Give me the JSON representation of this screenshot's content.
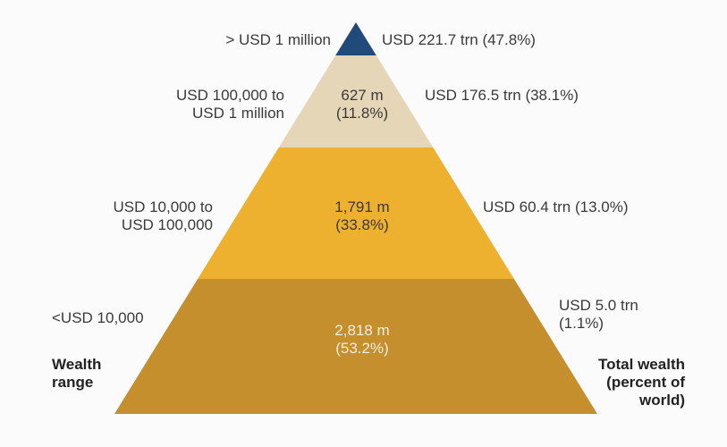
{
  "chart_data": {
    "type": "pyramid",
    "xlabel_left": "Wealth\nrange",
    "xlabel_right": "Total wealth\n(percent of\nworld)",
    "tiers": [
      {
        "range": "> USD 1 million",
        "adults": "",
        "wealth": "USD 221.7 trn (47.8%)",
        "wealth_trn": 221.7,
        "wealth_pct": 47.8,
        "color": "#1f4a7a"
      },
      {
        "range": "USD 100,000 to\nUSD 1 million",
        "adults": "627 m\n(11.8%)",
        "adults_m": 627,
        "adults_pct": 11.8,
        "wealth": "USD 176.5 trn (38.1%)",
        "wealth_trn": 176.5,
        "wealth_pct": 38.1,
        "color": "#e6d6b8"
      },
      {
        "range": "USD 10,000 to\nUSD 100,000",
        "adults": "1,791 m\n(33.8%)",
        "adults_m": 1791,
        "adults_pct": 33.8,
        "wealth": "USD 60.4 trn (13.0%)",
        "wealth_trn": 60.4,
        "wealth_pct": 13.0,
        "color": "#eeb02f"
      },
      {
        "range": "<USD 10,000",
        "adults": "2,818 m\n(53.2%)",
        "adults_m": 2818,
        "adults_pct": 53.2,
        "wealth": "USD 5.0 trn\n(1.1%)",
        "wealth_trn": 5.0,
        "wealth_pct": 1.1,
        "color": "#c48f2c"
      }
    ]
  }
}
